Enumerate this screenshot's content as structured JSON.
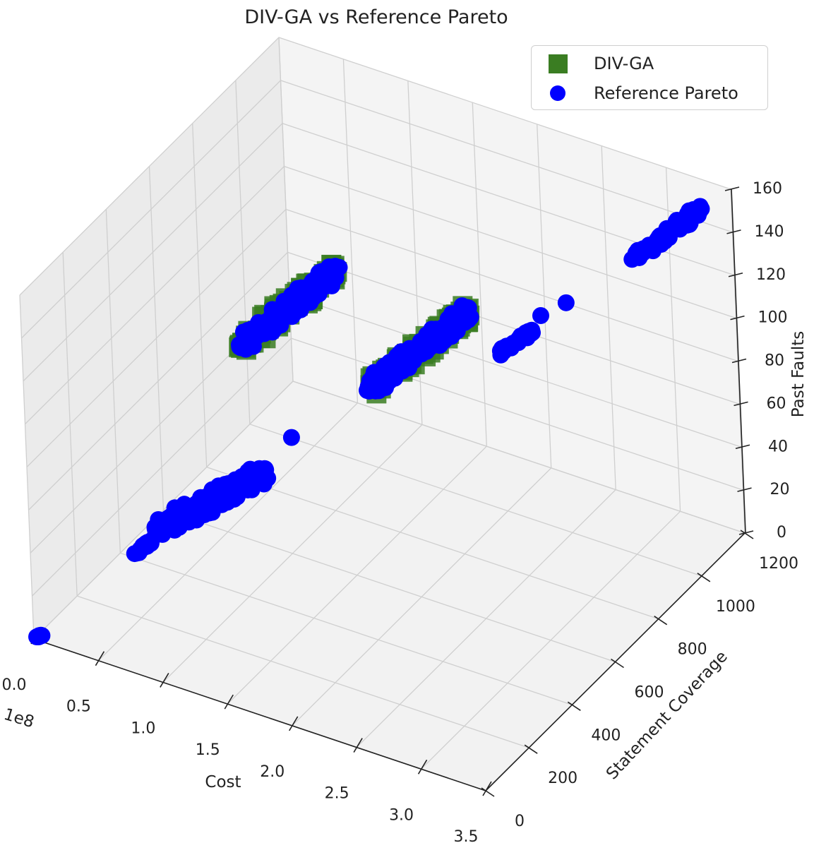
{
  "chart_data": {
    "type": "scatter",
    "projection": "3d",
    "title": "DIV-GA vs Reference Pareto",
    "xlabel": "Cost",
    "ylabel": "Statement Coverage",
    "zlabel": "Past Faults",
    "x_offset_label": "1e8",
    "xlim": [
      0,
      3.5
    ],
    "ylim": [
      0,
      1200
    ],
    "zlim": [
      0,
      160
    ],
    "x_ticks": [
      "0.0",
      "0.5",
      "1.0",
      "1.5",
      "2.0",
      "2.5",
      "3.0",
      "3.5"
    ],
    "y_ticks": [
      "0",
      "200",
      "400",
      "600",
      "800",
      "1000",
      "1200"
    ],
    "z_ticks": [
      "0",
      "20",
      "40",
      "60",
      "80",
      "100",
      "120",
      "140",
      "160"
    ],
    "grid": true,
    "legend_position": "top-right",
    "colors": {
      "div_ga": "#3a7d22",
      "reference": "#0000ff"
    },
    "series": [
      {
        "name": "DIV-GA",
        "marker": "square",
        "color": "#3a7d22",
        "clusters": [
          {
            "x": [
              0.55,
              1.15
            ],
            "y": [
              650,
              780
            ],
            "z": [
              82,
              118
            ]
          },
          {
            "x": [
              1.55,
              2.15
            ],
            "y": [
              650,
              790
            ],
            "z": [
              82,
              118
            ]
          }
        ]
      },
      {
        "name": "Reference Pareto",
        "marker": "circle",
        "color": "#0000ff",
        "clusters": [
          {
            "x": [
              0.0,
              0.05
            ],
            "y": [
              0,
              10
            ],
            "z": [
              0,
              2
            ]
          },
          {
            "x": [
              0.35,
              0.45
            ],
            "y": [
              260,
              290
            ],
            "z": [
              20,
              26
            ]
          },
          {
            "x": [
              0.4,
              1.15
            ],
            "y": [
              330,
              420
            ],
            "z": [
              25,
              60
            ]
          },
          {
            "x": [
              0.55,
              1.15
            ],
            "y": [
              650,
              780
            ],
            "z": [
              82,
              118
            ]
          },
          {
            "x": [
              1.55,
              2.15
            ],
            "y": [
              650,
              790
            ],
            "z": [
              82,
              118
            ]
          },
          {
            "x": [
              2.3,
              2.5
            ],
            "y": [
              800,
              860
            ],
            "z": [
              98,
              108
            ]
          },
          {
            "x": [
              3.05,
              3.4
            ],
            "y": [
              1000,
              1140
            ],
            "z": [
              138,
              156
            ]
          }
        ],
        "points": [
          {
            "x": 1.1,
            "y": 560,
            "z": 60
          },
          {
            "x": 2.55,
            "y": 870,
            "z": 115
          },
          {
            "x": 2.7,
            "y": 900,
            "z": 121
          }
        ]
      }
    ]
  }
}
